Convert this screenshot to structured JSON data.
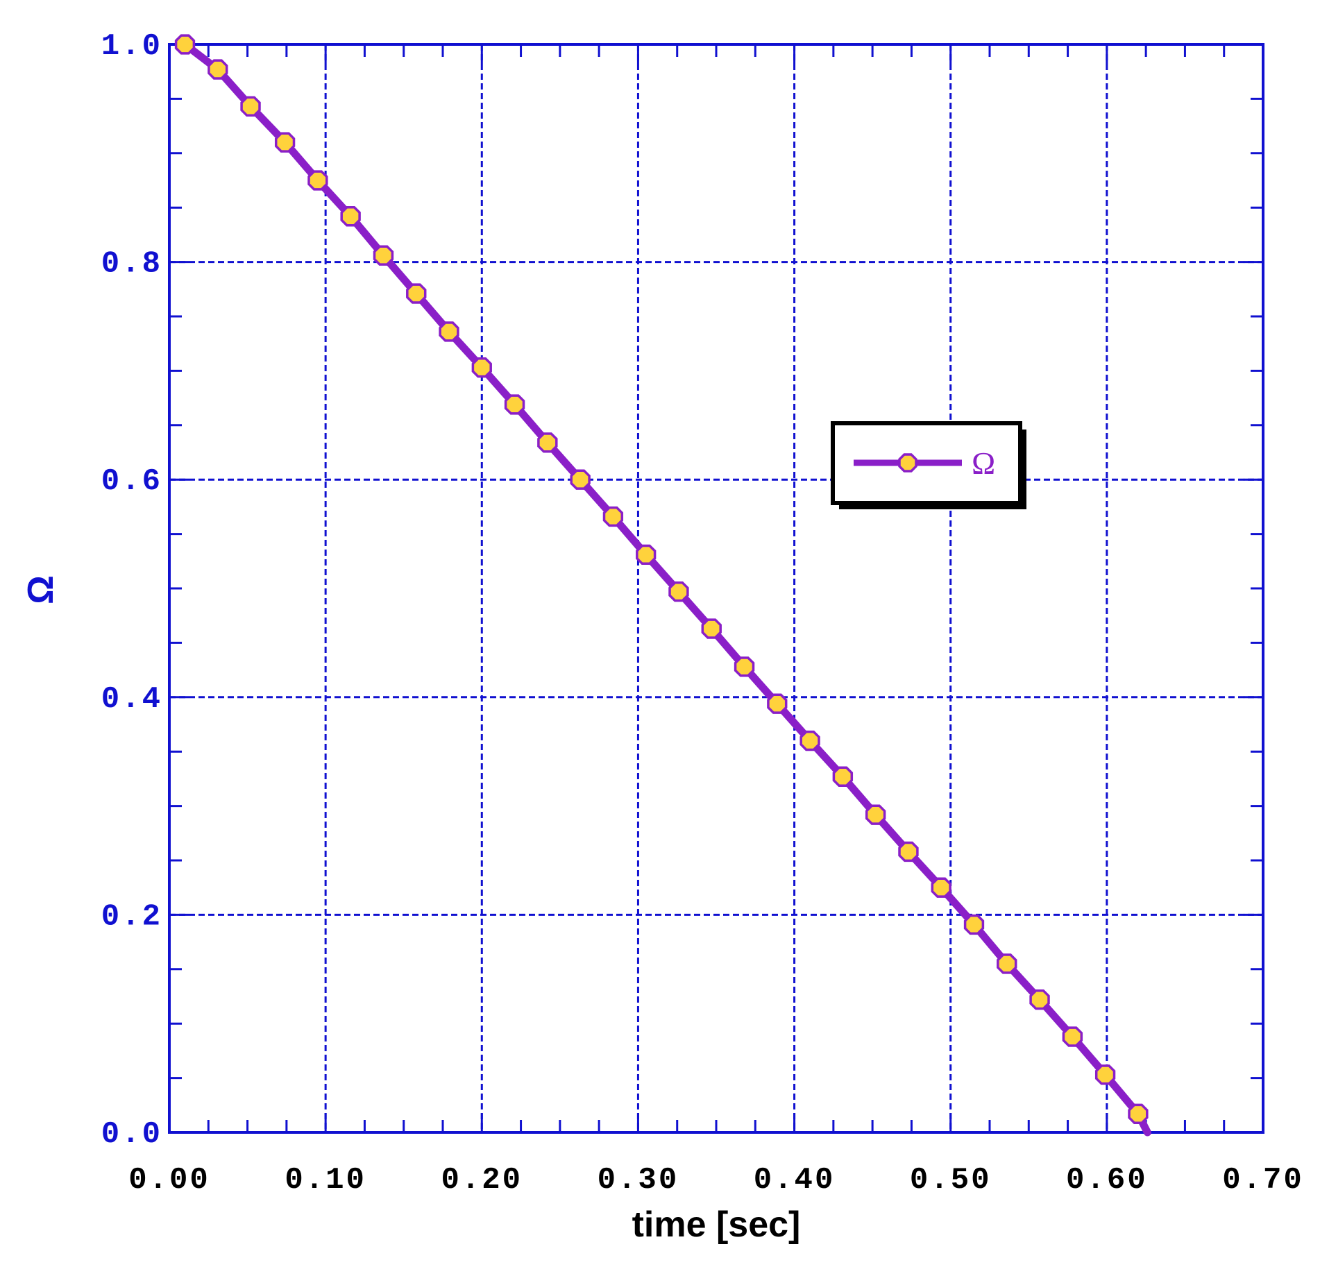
{
  "colors": {
    "axis": "#1010d0",
    "grid": "#1010d0",
    "line": "#8a1fc8",
    "marker_fill": "#ffd23c",
    "marker_edge": "#8a1fc8",
    "legend_border": "#000000",
    "xlabel": "#000000",
    "xtick": "#000000",
    "ytick": "#1010d0",
    "ylabel": "#1010d0"
  },
  "chart_data": {
    "type": "line",
    "title": "",
    "xlabel": "time [sec]",
    "ylabel": "Ω",
    "xlim": [
      0.0,
      0.7
    ],
    "ylim": [
      0.0,
      1.0
    ],
    "xticks": [
      "0.00",
      "0.10",
      "0.20",
      "0.30",
      "0.40",
      "0.50",
      "0.60",
      "0.70"
    ],
    "yticks": [
      "0.0",
      "0.2",
      "0.4",
      "0.6",
      "0.8",
      "1.0"
    ],
    "grid": true,
    "legend_position": "center-right",
    "series": [
      {
        "name": "Ω",
        "marker": "octagon",
        "x": [
          0.01,
          0.031,
          0.052,
          0.074,
          0.095,
          0.116,
          0.137,
          0.158,
          0.179,
          0.2,
          0.221,
          0.242,
          0.263,
          0.284,
          0.305,
          0.326,
          0.347,
          0.368,
          0.389,
          0.41,
          0.431,
          0.452,
          0.473,
          0.494,
          0.515,
          0.536,
          0.557,
          0.578,
          0.599,
          0.62,
          0.626
        ],
        "y": [
          1.0,
          0.977,
          0.943,
          0.91,
          0.875,
          0.842,
          0.806,
          0.771,
          0.736,
          0.703,
          0.669,
          0.634,
          0.6,
          0.566,
          0.531,
          0.497,
          0.463,
          0.428,
          0.394,
          0.36,
          0.327,
          0.292,
          0.258,
          0.225,
          0.191,
          0.155,
          0.122,
          0.088,
          0.053,
          0.017,
          0.0
        ],
        "markers_shown": 30
      }
    ]
  }
}
